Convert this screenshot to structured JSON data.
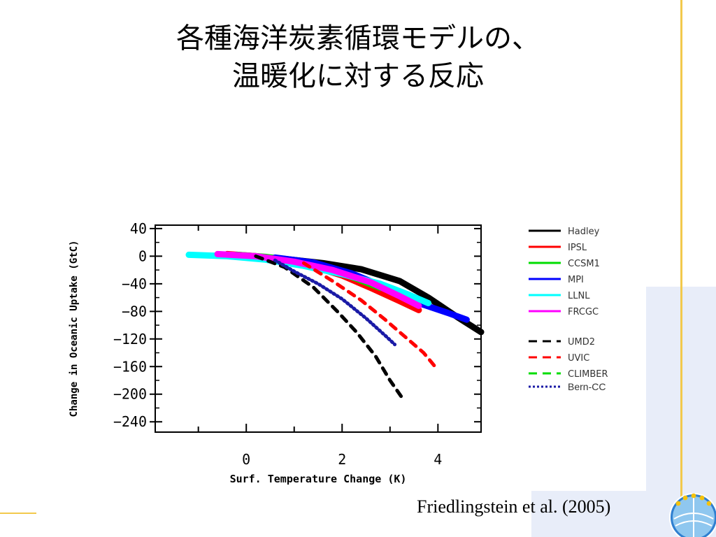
{
  "slide": {
    "title_line1": "各種海洋炭素循環モデルの、",
    "title_line2": "温暖化に対する反応",
    "citation": "Friedlingstein et al. (2005)"
  },
  "colors": {
    "gold_rule": "#f2c94c",
    "deco_blue": "#e8edf9"
  },
  "chart_data": {
    "type": "line",
    "title": "",
    "xlabel": "Surf. Temperature Change (K)",
    "ylabel": "Change in Oceanic Uptake (GtC)",
    "xlim": [
      -1.9,
      4.9
    ],
    "ylim": [
      -255,
      45
    ],
    "x_ticks": [
      0,
      2,
      4
    ],
    "x_tick_labels": [
      "0",
      "2",
      "4"
    ],
    "y_ticks": [
      40,
      0,
      -40,
      -80,
      -120,
      -160,
      -200,
      -240
    ],
    "y_tick_labels": [
      "40",
      "0",
      "−40",
      "−80",
      "−120",
      "−160",
      "−200",
      "−240"
    ],
    "grid": false,
    "legend_position": "right",
    "legend_coupled_label": "Bern-CC",
    "series": [
      {
        "name": "Hadley",
        "color": "#000000",
        "style": "solid",
        "x": [
          0.0,
          0.8,
          1.6,
          2.4,
          3.2,
          3.8,
          4.4,
          4.9
        ],
        "y": [
          0,
          -4,
          -10,
          -19,
          -36,
          -60,
          -88,
          -110
        ]
      },
      {
        "name": "IPSL",
        "color": "#ff0000",
        "style": "solid",
        "x": [
          -0.4,
          0.2,
          0.8,
          1.4,
          2.0,
          2.6,
          3.2,
          3.6
        ],
        "y": [
          3,
          0,
          -5,
          -15,
          -28,
          -46,
          -65,
          -78
        ]
      },
      {
        "name": "CCSM1",
        "color": "#00dd00",
        "style": "solid",
        "x": [
          -0.2,
          0.4,
          1.0,
          1.6,
          2.2,
          2.8
        ],
        "y": [
          2,
          -1,
          -6,
          -16,
          -30,
          -46
        ]
      },
      {
        "name": "MPI",
        "color": "#0000ff",
        "style": "solid",
        "x": [
          0.6,
          1.4,
          2.2,
          3.0,
          3.6,
          4.2,
          4.6
        ],
        "y": [
          -2,
          -9,
          -25,
          -48,
          -68,
          -82,
          -92
        ]
      },
      {
        "name": "LLNL",
        "color": "#00ffff",
        "style": "solid",
        "x": [
          -1.2,
          -0.4,
          0.4,
          1.2,
          2.0,
          2.8,
          3.4,
          3.8
        ],
        "y": [
          2,
          0,
          -5,
          -14,
          -26,
          -40,
          -56,
          -68
        ]
      },
      {
        "name": "FRCGC",
        "color": "#ff00ff",
        "style": "solid",
        "x": [
          -0.6,
          0.2,
          1.0,
          1.8,
          2.6,
          3.2,
          3.6
        ],
        "y": [
          3,
          0,
          -8,
          -20,
          -38,
          -58,
          -72
        ]
      },
      {
        "name": "UMD2",
        "color": "#000000",
        "style": "dashed",
        "x": [
          0.2,
          0.8,
          1.4,
          1.9,
          2.3,
          2.7,
          3.0,
          3.3
        ],
        "y": [
          0,
          -16,
          -45,
          -80,
          -110,
          -145,
          -180,
          -210
        ]
      },
      {
        "name": "UVIC",
        "color": "#ff0000",
        "style": "dashed",
        "x": [
          1.2,
          1.8,
          2.4,
          2.9,
          3.3,
          3.7,
          4.0
        ],
        "y": [
          -10,
          -36,
          -64,
          -92,
          -116,
          -140,
          -165
        ]
      },
      {
        "name": "CLIMBER",
        "color": "#00dd00",
        "style": "dashed",
        "x": [],
        "y": []
      },
      {
        "name": "Bern-CC",
        "color": "#1a1aa6",
        "style": "dotted",
        "x": [
          0.6,
          1.0,
          1.5,
          2.0,
          2.5,
          2.9,
          3.1
        ],
        "y": [
          -6,
          -22,
          -40,
          -62,
          -90,
          -115,
          -128
        ]
      }
    ]
  }
}
